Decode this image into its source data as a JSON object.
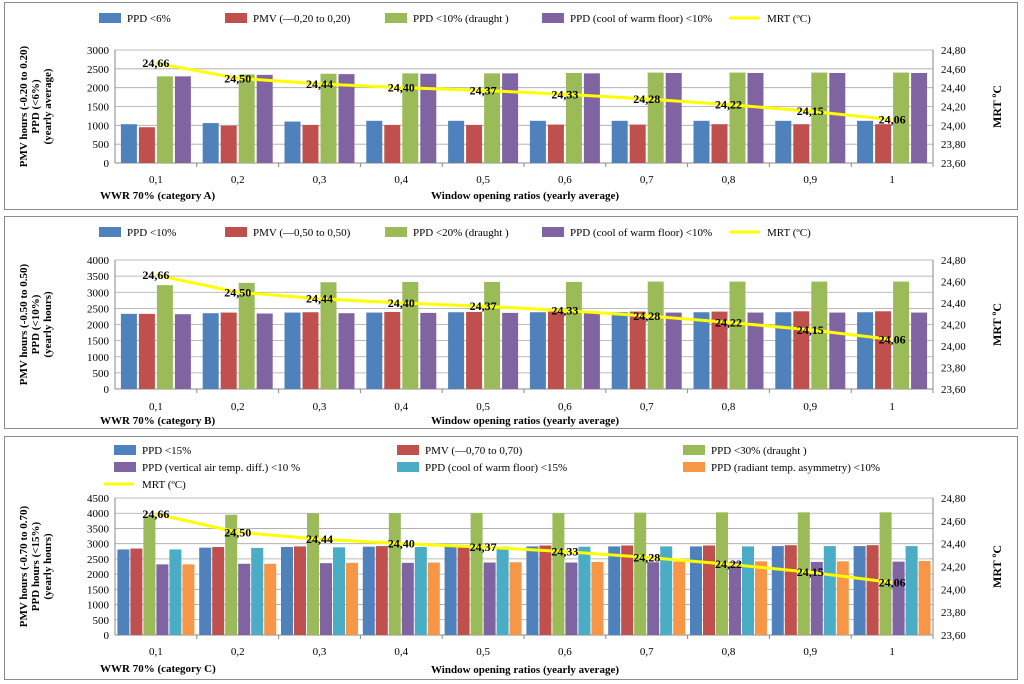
{
  "colors": {
    "blue": "#4F81BD",
    "red": "#C0504D",
    "green": "#9BBB59",
    "purple": "#8064A2",
    "teal": "#4BACC6",
    "orange": "#F79646",
    "mrt": "#FFFF00",
    "grid": "#a6a6a6"
  },
  "chart_data": [
    {
      "type": "bar",
      "category_label": "WWR 70% (category A)",
      "xlabel": "Window  opening ratios (yearly average)",
      "ylabel_lines": [
        "PMV hours (-0.20 to 0.20)",
        "PPD (<6%)",
        "(yearly average)"
      ],
      "y2label": "MRT ºC",
      "categories": [
        "0,1",
        "0,2",
        "0,3",
        "0,4",
        "0,5",
        "0,6",
        "0,7",
        "0,8",
        "0,9",
        "1"
      ],
      "ylim": [
        0,
        3000
      ],
      "yticks": [
        "0",
        "500",
        "1000",
        "1500",
        "2000",
        "2500",
        "3000"
      ],
      "y2lim": [
        23.6,
        24.8
      ],
      "y2ticks": [
        "23,60",
        "23,80",
        "24,00",
        "24,20",
        "24,40",
        "24,60",
        "24,80"
      ],
      "series": [
        {
          "name": "PPD <6%",
          "color": "blue",
          "values": [
            1030,
            1060,
            1100,
            1120,
            1120,
            1120,
            1120,
            1120,
            1120,
            1120
          ]
        },
        {
          "name": "PMV (—0,20 to 0,20)",
          "color": "red",
          "values": [
            950,
            990,
            1010,
            1010,
            1010,
            1020,
            1020,
            1030,
            1030,
            1030
          ]
        },
        {
          "name": "PPD <10% (draught )",
          "color": "green",
          "values": [
            2300,
            2350,
            2370,
            2380,
            2380,
            2390,
            2400,
            2400,
            2400,
            2400
          ]
        },
        {
          "name": "PPD (cool of warm floor) <10%",
          "color": "purple",
          "values": [
            2300,
            2340,
            2360,
            2370,
            2380,
            2380,
            2390,
            2390,
            2390,
            2390
          ]
        }
      ],
      "line": {
        "name": "MRT (ºC)",
        "color": "mrt",
        "values": [
          24.66,
          24.5,
          24.44,
          24.4,
          24.37,
          24.33,
          24.28,
          24.22,
          24.15,
          24.06
        ],
        "labels": [
          "24,66",
          "24,50",
          "24,44",
          "24,40",
          "24,37",
          "24,33",
          "24,28",
          "24,22",
          "24,15",
          "24,06"
        ]
      }
    },
    {
      "type": "bar",
      "category_label": "WWR 70% (category B)",
      "xlabel": "Window  opening ratios (yearly average)",
      "ylabel_lines": [
        "PMV hours (-0.50 to 0.50)",
        "PPD (<10%)",
        "(yearly hours)"
      ],
      "y2label": "MRT ºC",
      "categories": [
        "0,1",
        "0,2",
        "0,3",
        "0,4",
        "0,5",
        "0,6",
        "0,7",
        "0,8",
        "0,9",
        "1"
      ],
      "ylim": [
        0,
        4000
      ],
      "yticks": [
        "0",
        "500",
        "1000",
        "1500",
        "2000",
        "2500",
        "3000",
        "3500",
        "4000"
      ],
      "y2lim": [
        23.6,
        24.8
      ],
      "y2ticks": [
        "23,60",
        "23,80",
        "24,00",
        "24,20",
        "24,40",
        "24,60",
        "24,80"
      ],
      "series": [
        {
          "name": "PPD <10%",
          "color": "blue",
          "values": [
            2330,
            2350,
            2370,
            2370,
            2380,
            2380,
            2380,
            2380,
            2380,
            2380
          ]
        },
        {
          "name": "PMV (—0,50 to 0,50)",
          "color": "red",
          "values": [
            2330,
            2370,
            2380,
            2390,
            2390,
            2400,
            2400,
            2400,
            2410,
            2410
          ]
        },
        {
          "name": "PPD <20% (draught )",
          "color": "green",
          "values": [
            3220,
            3290,
            3310,
            3320,
            3320,
            3320,
            3330,
            3330,
            3330,
            3330
          ]
        },
        {
          "name": "PPD (cool of warm floor) <10%",
          "color": "purple",
          "values": [
            2320,
            2340,
            2350,
            2360,
            2360,
            2360,
            2370,
            2370,
            2370,
            2370
          ]
        }
      ],
      "line": {
        "name": "MRT (ºC)",
        "color": "mrt",
        "values": [
          24.66,
          24.5,
          24.44,
          24.4,
          24.37,
          24.33,
          24.28,
          24.22,
          24.15,
          24.06
        ],
        "labels": [
          "24,66",
          "24,50",
          "24,44",
          "24,40",
          "24,37",
          "24,33",
          "24,28",
          "24,22",
          "24,15",
          "24,06"
        ]
      }
    },
    {
      "type": "bar",
      "category_label": "WWR 70% (category C)",
      "xlabel": "Window  opening ratios (yearly average)",
      "ylabel_lines": [
        "PMV hours (-0.70 to 0.70)",
        "PPD hours (<15%)",
        "(yearly hours)"
      ],
      "y2label": "MRT ºC",
      "categories": [
        "0,1",
        "0,2",
        "0,3",
        "0,4",
        "0,5",
        "0,6",
        "0,7",
        "0,8",
        "0,9",
        "1"
      ],
      "ylim": [
        0,
        4500
      ],
      "yticks": [
        "0",
        "500",
        "1000",
        "1500",
        "2000",
        "2500",
        "3000",
        "3500",
        "4000",
        "4500"
      ],
      "y2lim": [
        23.6,
        24.8
      ],
      "y2ticks": [
        "23,60",
        "23,80",
        "24,00",
        "24,20",
        "24,40",
        "24,60",
        "24,80"
      ],
      "series": [
        {
          "name": "PPD <15%",
          "color": "blue",
          "values": [
            2810,
            2870,
            2890,
            2900,
            2900,
            2910,
            2910,
            2910,
            2920,
            2920
          ]
        },
        {
          "name": "PMV (—0,70 to 0,70)",
          "color": "red",
          "values": [
            2840,
            2890,
            2910,
            2920,
            2930,
            2940,
            2940,
            2940,
            2950,
            2950
          ]
        },
        {
          "name": "PPD <30% (draught )",
          "color": "green",
          "values": [
            3900,
            3950,
            3990,
            4000,
            4010,
            4010,
            4020,
            4030,
            4030,
            4030
          ]
        },
        {
          "name": "PPD (vertical air temp. diff.) <10 %",
          "color": "purple",
          "values": [
            2320,
            2340,
            2360,
            2370,
            2380,
            2380,
            2390,
            2400,
            2400,
            2410
          ]
        },
        {
          "name": "PPD (cool of warm floor) <15%",
          "color": "teal",
          "values": [
            2810,
            2860,
            2880,
            2890,
            2900,
            2900,
            2910,
            2910,
            2920,
            2920
          ]
        },
        {
          "name": "PPD (radiant temp. asymmetry) <10%",
          "color": "orange",
          "values": [
            2320,
            2340,
            2370,
            2380,
            2390,
            2400,
            2410,
            2420,
            2420,
            2430
          ]
        }
      ],
      "line": {
        "name": "MRT (ºC)",
        "color": "mrt",
        "values": [
          24.66,
          24.5,
          24.44,
          24.4,
          24.37,
          24.33,
          24.28,
          24.22,
          24.15,
          24.06
        ],
        "labels": [
          "24,66",
          "24,50",
          "24,44",
          "24,40",
          "24,37",
          "24,33",
          "24,28",
          "24,22",
          "24,15",
          "24,06"
        ]
      }
    }
  ]
}
